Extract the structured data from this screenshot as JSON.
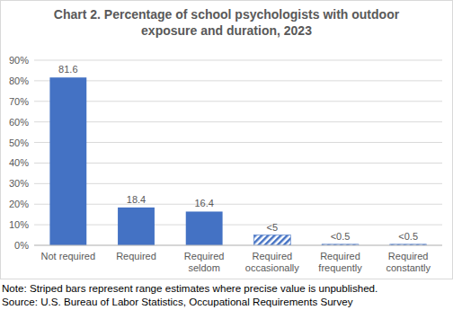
{
  "chart_data": {
    "type": "bar",
    "title": "Chart 2. Percentage of school psychologists with outdoor exposure and duration, 2023",
    "categories": [
      "Not required",
      "Required",
      "Required seldom",
      "Required occasionally",
      "Required frequently",
      "Required constantly"
    ],
    "values": [
      81.6,
      18.4,
      16.4,
      5,
      0.5,
      0.5
    ],
    "value_labels": [
      "81.6",
      "18.4",
      "16.4",
      "<5",
      "<0.5",
      "<0.5"
    ],
    "color": "#4472c4",
    "ylim": [
      0,
      90
    ],
    "yticks": [
      {
        "value": 0,
        "label": "0%"
      },
      {
        "value": 10,
        "label": "10%"
      },
      {
        "value": 20,
        "label": "20%"
      },
      {
        "value": 30,
        "label": "30%"
      },
      {
        "value": 40,
        "label": "40%"
      },
      {
        "value": 50,
        "label": "50%"
      },
      {
        "value": 60,
        "label": "60%"
      },
      {
        "value": 70,
        "label": "70%"
      },
      {
        "value": 80,
        "label": "80%"
      },
      {
        "value": 90,
        "label": "90%"
      }
    ],
    "grid": true,
    "data_labels": true,
    "note": "Note: Striped bars represent range estimates where precise value is unpublished.",
    "source": "Source: U.S. Bureau of Labor Statistics, Occupational Requirements Survey"
  }
}
